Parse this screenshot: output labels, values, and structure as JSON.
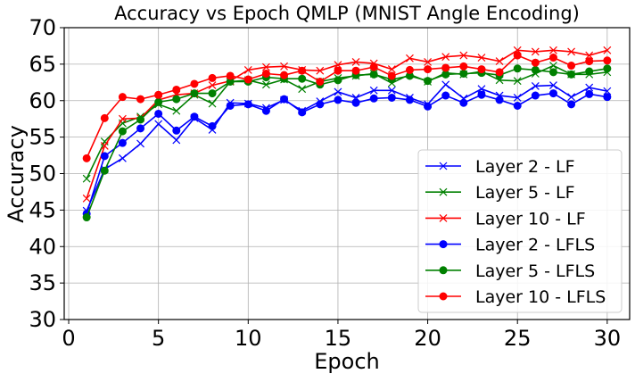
{
  "chart_data": {
    "type": "line",
    "title": "Accuracy vs Epoch QMLP (MNIST Angle Encoding)",
    "xlabel": "Epoch",
    "ylabel": "Accuracy",
    "xlim": [
      -0.25,
      31.25
    ],
    "ylim": [
      30,
      70
    ],
    "xticks": [
      0,
      5,
      10,
      15,
      20,
      25,
      30
    ],
    "yticks": [
      30,
      35,
      40,
      45,
      50,
      55,
      60,
      65,
      70
    ],
    "grid": true,
    "legend_position": "lower right",
    "x": [
      1,
      2,
      3,
      4,
      5,
      6,
      7,
      8,
      9,
      10,
      11,
      12,
      13,
      14,
      15,
      16,
      17,
      18,
      19,
      20,
      21,
      22,
      23,
      24,
      25,
      26,
      27,
      28,
      29,
      30
    ],
    "series": [
      {
        "name": "Layer 2 - LF",
        "color": "#0000ff",
        "marker": "x",
        "values": [
          44.9,
          50.6,
          52.1,
          54.1,
          56.8,
          54.6,
          57.6,
          56.0,
          59.7,
          59.6,
          59.0,
          60.1,
          58.6,
          59.9,
          61.2,
          60.4,
          61.4,
          61.4,
          60.4,
          59.5,
          62.2,
          60.3,
          61.6,
          60.7,
          60.4,
          62.0,
          62.1,
          60.5,
          61.8,
          61.3
        ]
      },
      {
        "name": "Layer 5 - LF",
        "color": "#008000",
        "marker": "x",
        "values": [
          49.3,
          54.4,
          56.9,
          57.8,
          59.5,
          58.6,
          60.8,
          59.6,
          62.6,
          62.8,
          62.2,
          62.9,
          61.6,
          62.6,
          63.1,
          63.4,
          63.7,
          62.4,
          63.6,
          62.6,
          63.8,
          63.6,
          64.0,
          62.8,
          62.7,
          63.7,
          64.8,
          63.6,
          63.6,
          63.9
        ]
      },
      {
        "name": "Layer 10 - LF",
        "color": "#ff0000",
        "marker": "x",
        "values": [
          46.6,
          53.8,
          57.5,
          57.6,
          60.1,
          60.8,
          61.0,
          62.1,
          62.7,
          64.2,
          64.6,
          64.7,
          64.2,
          64.1,
          64.9,
          65.3,
          65.1,
          64.3,
          65.8,
          65.3,
          66.0,
          66.2,
          65.9,
          65.4,
          66.9,
          66.7,
          66.9,
          66.7,
          66.2,
          66.9
        ]
      },
      {
        "name": "Layer 2 - LFLS",
        "color": "#0000ff",
        "marker": "o",
        "values": [
          44.5,
          52.4,
          54.2,
          56.2,
          58.2,
          55.9,
          57.8,
          56.5,
          59.3,
          59.5,
          58.6,
          60.2,
          58.4,
          59.5,
          60.1,
          59.7,
          60.3,
          60.4,
          60.1,
          59.2,
          60.7,
          59.7,
          60.8,
          60.1,
          59.3,
          60.7,
          61.0,
          59.5,
          60.9,
          60.5
        ]
      },
      {
        "name": "Layer 5 - LFLS",
        "color": "#008000",
        "marker": "o",
        "values": [
          44.0,
          50.4,
          55.8,
          57.4,
          59.8,
          60.2,
          61.0,
          61.0,
          62.6,
          62.6,
          63.2,
          63.0,
          63.0,
          62.2,
          62.8,
          63.5,
          63.6,
          62.9,
          63.4,
          62.7,
          63.6,
          63.7,
          63.8,
          63.5,
          64.4,
          64.2,
          63.9,
          63.6,
          64.0,
          64.4
        ]
      },
      {
        "name": "Layer 10 - LFLS",
        "color": "#ff0000",
        "marker": "o",
        "values": [
          52.1,
          57.6,
          60.5,
          60.2,
          60.8,
          61.5,
          62.3,
          63.1,
          63.4,
          62.9,
          63.7,
          63.5,
          64.1,
          62.6,
          64.1,
          64.1,
          64.6,
          63.4,
          64.2,
          64.3,
          64.5,
          64.7,
          64.3,
          63.9,
          66.2,
          65.2,
          65.9,
          64.8,
          65.4,
          65.5
        ]
      }
    ]
  }
}
